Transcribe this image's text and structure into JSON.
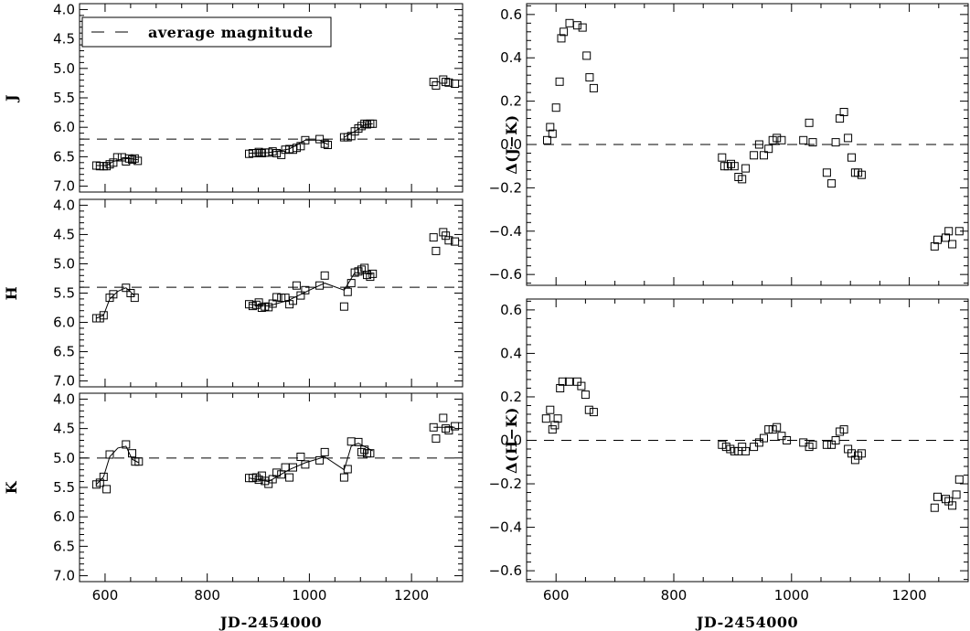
{
  "chart_data": [
    {
      "type": "scatter",
      "panel": "J",
      "ylabel": "J",
      "xlabel": "",
      "xlim": [
        550,
        1300
      ],
      "ylim": [
        7.1,
        3.9
      ],
      "xticks": [
        600,
        800,
        1000,
        1200
      ],
      "yticks": [
        4.0,
        4.5,
        5.0,
        5.5,
        6.0,
        6.5,
        7.0
      ],
      "ytick_labels": [
        "4.0",
        "4.5",
        "5.0",
        "5.5",
        "6.0",
        "6.5",
        "7.0"
      ],
      "average": 6.2,
      "legend": {
        "label": "average magnitude",
        "position": "top-left"
      },
      "points": {
        "x": [
          583,
          590,
          597,
          603,
          609,
          616,
          624,
          633,
          641,
          647,
          653,
          658,
          664,
          882,
          889,
          896,
          901,
          907,
          913,
          920,
          928,
          936,
          945,
          953,
          961,
          968,
          975,
          983,
          992,
          1020,
          1030,
          1036,
          1068,
          1075,
          1082,
          1089,
          1096,
          1102,
          1108,
          1113,
          1119,
          1124,
          1243,
          1248,
          1262,
          1267,
          1273,
          1285
        ],
        "y": [
          6.65,
          6.66,
          6.66,
          6.66,
          6.63,
          6.6,
          6.51,
          6.51,
          6.58,
          6.53,
          6.55,
          6.53,
          6.57,
          6.45,
          6.44,
          6.44,
          6.42,
          6.44,
          6.43,
          6.43,
          6.41,
          6.44,
          6.47,
          6.38,
          6.37,
          6.38,
          6.35,
          6.32,
          6.22,
          6.2,
          6.28,
          6.3,
          6.17,
          6.17,
          6.15,
          6.07,
          6.02,
          5.98,
          5.94,
          5.95,
          5.94,
          5.94,
          5.23,
          5.29,
          5.19,
          5.23,
          5.24,
          5.26
        ]
      },
      "curves": [
        {
          "x": [
            583,
            603,
            616,
            633,
            647,
            664
          ],
          "y": [
            6.65,
            6.65,
            6.58,
            6.54,
            6.53,
            6.55
          ]
        },
        {
          "x": [
            882,
            920,
            960,
            992,
            1020,
            1036
          ],
          "y": [
            6.44,
            6.43,
            6.37,
            6.22,
            6.22,
            6.29
          ]
        },
        {
          "x": [
            1068,
            1089,
            1108,
            1124
          ],
          "y": [
            6.17,
            6.07,
            5.96,
            5.94
          ]
        }
      ]
    },
    {
      "type": "scatter",
      "panel": "H",
      "ylabel": "H",
      "xlabel": "",
      "xlim": [
        550,
        1300
      ],
      "ylim": [
        7.1,
        3.9
      ],
      "xticks": [
        600,
        800,
        1000,
        1200
      ],
      "yticks": [
        4.0,
        4.5,
        5.0,
        5.5,
        6.0,
        6.5,
        7.0
      ],
      "ytick_labels": [
        "4.0",
        "4.5",
        "5.0",
        "5.5",
        "6.0",
        "6.5",
        "7.0"
      ],
      "average": 5.4,
      "points": {
        "x": [
          583,
          590,
          597,
          609,
          616,
          641,
          650,
          658,
          882,
          889,
          896,
          901,
          907,
          913,
          920,
          928,
          936,
          945,
          953,
          961,
          968,
          975,
          983,
          992,
          1020,
          1030,
          1068,
          1075,
          1082,
          1089,
          1096,
          1102,
          1108,
          1113,
          1119,
          1124,
          1243,
          1248,
          1262,
          1267,
          1273,
          1285
        ],
        "y": [
          5.93,
          5.93,
          5.88,
          5.58,
          5.52,
          5.41,
          5.5,
          5.58,
          5.69,
          5.72,
          5.7,
          5.66,
          5.75,
          5.73,
          5.74,
          5.68,
          5.57,
          5.58,
          5.58,
          5.69,
          5.63,
          5.37,
          5.54,
          5.45,
          5.37,
          5.2,
          5.73,
          5.48,
          5.33,
          5.15,
          5.13,
          5.1,
          5.07,
          5.19,
          5.22,
          5.17,
          4.55,
          4.78,
          4.46,
          4.52,
          4.6,
          4.62
        ]
      },
      "curves": [
        {
          "x": [
            583,
            597,
            609,
            625,
            641,
            650,
            658
          ],
          "y": [
            5.93,
            5.88,
            5.6,
            5.47,
            5.41,
            5.48,
            5.55
          ]
        },
        {
          "x": [
            882,
            920,
            960,
            1000,
            1030,
            1068,
            1089,
            1124
          ],
          "y": [
            5.69,
            5.72,
            5.62,
            5.45,
            5.33,
            5.45,
            5.15,
            5.18
          ]
        }
      ]
    },
    {
      "type": "scatter",
      "panel": "K",
      "ylabel": "K",
      "xlabel": "JD-2454000",
      "xlim": [
        550,
        1300
      ],
      "ylim": [
        7.1,
        3.9
      ],
      "xticks": [
        600,
        800,
        1000,
        1200
      ],
      "xtick_labels": [
        "600",
        "800",
        "1000",
        "1200"
      ],
      "yticks": [
        4.0,
        4.5,
        5.0,
        5.5,
        6.0,
        6.5,
        7.0
      ],
      "ytick_labels": [
        "4.0",
        "4.5",
        "5.0",
        "5.5",
        "6.0",
        "6.5",
        "7.0"
      ],
      "average": 5.0,
      "points": {
        "x": [
          583,
          590,
          597,
          603,
          609,
          641,
          653,
          659,
          666,
          882,
          889,
          896,
          901,
          907,
          913,
          920,
          928,
          936,
          945,
          953,
          961,
          968,
          983,
          992,
          1020,
          1030,
          1068,
          1075,
          1082,
          1096,
          1102,
          1108,
          1113,
          1119,
          1243,
          1248,
          1262,
          1267,
          1273,
          1285
        ],
        "y": [
          5.45,
          5.42,
          5.32,
          5.53,
          4.94,
          4.77,
          4.92,
          5.06,
          5.06,
          5.34,
          5.34,
          5.33,
          5.37,
          5.3,
          5.39,
          5.44,
          5.36,
          5.25,
          5.28,
          5.16,
          5.33,
          5.16,
          4.98,
          5.11,
          5.04,
          4.9,
          5.33,
          5.19,
          4.72,
          4.73,
          4.9,
          4.86,
          4.92,
          4.92,
          4.48,
          4.67,
          4.32,
          4.5,
          4.53,
          4.46
        ]
      },
      "curves": [
        {
          "x": [
            583,
            597,
            609,
            625,
            641,
            653,
            666
          ],
          "y": [
            5.45,
            5.32,
            4.98,
            4.83,
            4.8,
            5.02,
            5.08
          ]
        },
        {
          "x": [
            882,
            920,
            960,
            992,
            1030,
            1068,
            1082,
            1096,
            1124
          ],
          "y": [
            5.34,
            5.4,
            5.2,
            5.08,
            4.98,
            5.2,
            4.8,
            4.75,
            4.88
          ]
        },
        {
          "x": [
            1243,
            1285
          ],
          "y": [
            4.48,
            4.48
          ]
        }
      ]
    },
    {
      "type": "scatter",
      "panel": "dJK",
      "ylabel": "Δ(J−K)",
      "xlabel": "",
      "xlim": [
        550,
        1300
      ],
      "ylim": [
        -0.65,
        0.65
      ],
      "xticks": [
        600,
        800,
        1000,
        1200
      ],
      "yticks": [
        -0.6,
        -0.4,
        -0.2,
        0.0,
        0.2,
        0.4,
        0.6
      ],
      "ytick_labels": [
        "−0.6",
        "−0.4",
        "−0.2",
        "0.0",
        "0.2",
        "0.4",
        "0.6"
      ],
      "average": 0.0,
      "points": {
        "x": [
          585,
          590,
          594,
          600,
          606,
          609,
          613,
          623,
          636,
          645,
          652,
          657,
          664,
          882,
          886,
          892,
          897,
          903,
          910,
          916,
          922,
          936,
          945,
          953,
          961,
          968,
          975,
          983,
          1020,
          1030,
          1036,
          1060,
          1068,
          1075,
          1082,
          1089,
          1096,
          1102,
          1108,
          1113,
          1119,
          1243,
          1248,
          1262,
          1267,
          1273,
          1285
        ],
        "y": [
          0.02,
          0.08,
          0.05,
          0.17,
          0.29,
          0.49,
          0.52,
          0.56,
          0.55,
          0.54,
          0.41,
          0.31,
          0.26,
          -0.06,
          -0.1,
          -0.1,
          -0.09,
          -0.1,
          -0.15,
          -0.16,
          -0.11,
          -0.05,
          0.0,
          -0.05,
          -0.02,
          0.02,
          0.03,
          0.02,
          0.02,
          0.1,
          0.01,
          -0.13,
          -0.18,
          0.01,
          0.12,
          0.15,
          0.03,
          -0.06,
          -0.13,
          -0.13,
          -0.14,
          -0.47,
          -0.44,
          -0.43,
          -0.4,
          -0.46,
          -0.4
        ]
      }
    },
    {
      "type": "scatter",
      "panel": "dHK",
      "ylabel": "Δ(H−K)",
      "xlabel": "JD-2454000",
      "xlim": [
        550,
        1300
      ],
      "ylim": [
        -0.65,
        0.65
      ],
      "xticks": [
        600,
        800,
        1000,
        1200
      ],
      "xtick_labels": [
        "600",
        "800",
        "1000",
        "1200"
      ],
      "yticks": [
        -0.6,
        -0.4,
        -0.2,
        0.0,
        0.2,
        0.4,
        0.6
      ],
      "ytick_labels": [
        "−0.6",
        "−0.4",
        "−0.2",
        "0.0",
        "0.2",
        "0.4",
        "0.6"
      ],
      "average": 0.0,
      "points": {
        "x": [
          583,
          590,
          594,
          598,
          603,
          607,
          611,
          622,
          636,
          643,
          650,
          656,
          664,
          882,
          889,
          896,
          903,
          910,
          916,
          922,
          936,
          945,
          953,
          961,
          968,
          975,
          983,
          992,
          1020,
          1030,
          1036,
          1060,
          1068,
          1075,
          1082,
          1089,
          1096,
          1102,
          1108,
          1113,
          1119,
          1243,
          1248,
          1262,
          1267,
          1273,
          1280,
          1285
        ],
        "y": [
          0.1,
          0.14,
          0.05,
          0.07,
          0.1,
          0.24,
          0.27,
          0.27,
          0.27,
          0.25,
          0.21,
          0.14,
          0.13,
          -0.02,
          -0.03,
          -0.04,
          -0.05,
          -0.05,
          -0.03,
          -0.05,
          -0.03,
          -0.01,
          0.01,
          0.05,
          0.05,
          0.06,
          0.02,
          0.0,
          -0.01,
          -0.03,
          -0.02,
          -0.02,
          -0.02,
          0.0,
          0.04,
          0.05,
          -0.04,
          -0.06,
          -0.09,
          -0.07,
          -0.06,
          -0.31,
          -0.26,
          -0.27,
          -0.28,
          -0.3,
          -0.25,
          -0.18
        ]
      }
    }
  ]
}
